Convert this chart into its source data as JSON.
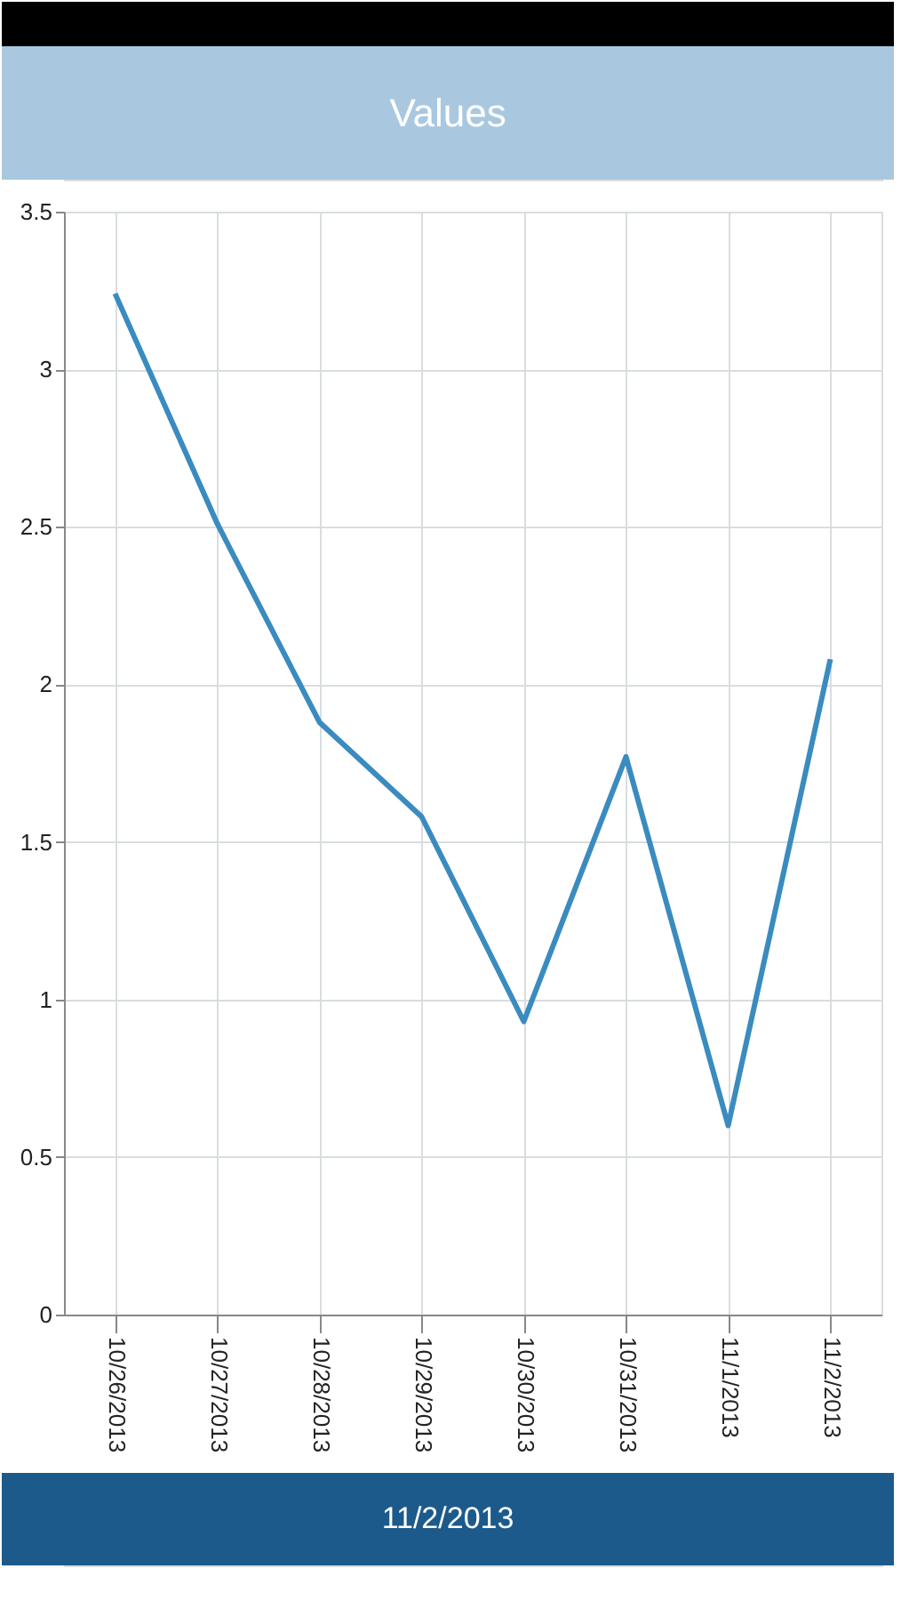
{
  "chart_data": {
    "type": "line",
    "title": "Values",
    "annotations": [
      "11/2/2013"
    ],
    "categories": [
      "10/26/2013",
      "10/27/2013",
      "10/28/2013",
      "10/29/2013",
      "10/30/2013",
      "10/31/2013",
      "11/1/2013",
      "11/2/2013"
    ],
    "series": [
      {
        "color": "#3a8bbf",
        "values": [
          3.24,
          2.51,
          1.88,
          1.58,
          0.93,
          1.77,
          0.6,
          2.08
        ]
      }
    ],
    "ylim": [
      0,
      3.5
    ],
    "yticks": [
      0,
      0.5,
      1,
      1.5,
      2,
      2.5,
      3,
      3.5
    ],
    "grid": true,
    "marker": "none",
    "line_style": "solid"
  }
}
